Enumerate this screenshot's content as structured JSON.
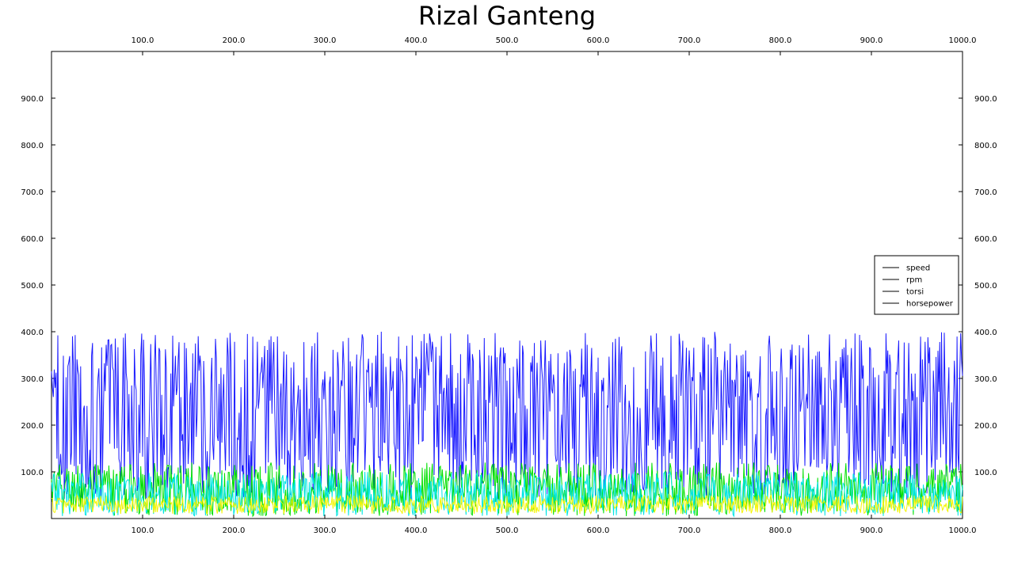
{
  "chart_data": {
    "type": "line",
    "title": "Rizal Ganteng",
    "xlabel": "",
    "ylabel": "",
    "xlim": [
      0,
      1000
    ],
    "ylim": [
      0,
      1000
    ],
    "x_ticks": [
      "100.0",
      "200.0",
      "300.0",
      "400.0",
      "500.0",
      "600.0",
      "700.0",
      "800.0",
      "900.0",
      "1000.0"
    ],
    "y_ticks": [
      "100.0",
      "200.0",
      "300.0",
      "400.0",
      "500.0",
      "600.0",
      "700.0",
      "800.0",
      "900.0"
    ],
    "grid": false,
    "legend_position": "right",
    "series": [
      {
        "name": "speed",
        "color": "#1a1aff",
        "x": [
          0,
          50,
          100,
          150,
          200,
          250,
          300,
          350,
          400,
          450,
          500,
          550,
          600,
          650,
          700,
          750,
          800,
          850,
          900,
          950,
          1000
        ],
        "values": [
          200,
          250,
          230,
          240,
          250,
          230,
          240,
          220,
          240,
          250,
          230,
          240,
          250,
          230,
          240,
          230,
          240,
          230,
          240,
          230,
          220
        ],
        "range": [
          40,
          400
        ]
      },
      {
        "name": "rpm",
        "color": "#00e000",
        "x": [
          0,
          50,
          100,
          150,
          200,
          250,
          300,
          350,
          400,
          450,
          500,
          550,
          600,
          650,
          700,
          750,
          800,
          850,
          900,
          950,
          1000
        ],
        "values": [
          60,
          60,
          60,
          60,
          60,
          60,
          60,
          60,
          60,
          60,
          60,
          60,
          60,
          60,
          60,
          60,
          60,
          60,
          60,
          60,
          60
        ],
        "range": [
          5,
          120
        ]
      },
      {
        "name": "torsi",
        "color": "#00e5e5",
        "x": [
          0,
          50,
          100,
          150,
          200,
          250,
          300,
          350,
          400,
          450,
          500,
          550,
          600,
          650,
          700,
          750,
          800,
          850,
          900,
          950,
          1000
        ],
        "values": [
          50,
          50,
          50,
          50,
          50,
          50,
          50,
          50,
          50,
          50,
          50,
          50,
          50,
          50,
          50,
          50,
          50,
          50,
          50,
          50,
          50
        ],
        "range": [
          5,
          100
        ]
      },
      {
        "name": "horsepower",
        "color": "#f5f500",
        "x": [
          0,
          50,
          100,
          150,
          200,
          250,
          300,
          350,
          400,
          450,
          500,
          550,
          600,
          650,
          700,
          750,
          800,
          850,
          900,
          950,
          1000
        ],
        "values": [
          30,
          30,
          30,
          30,
          30,
          30,
          30,
          30,
          30,
          30,
          30,
          30,
          30,
          30,
          30,
          30,
          30,
          30,
          30,
          30,
          30
        ],
        "range": [
          10,
          50
        ]
      }
    ]
  }
}
